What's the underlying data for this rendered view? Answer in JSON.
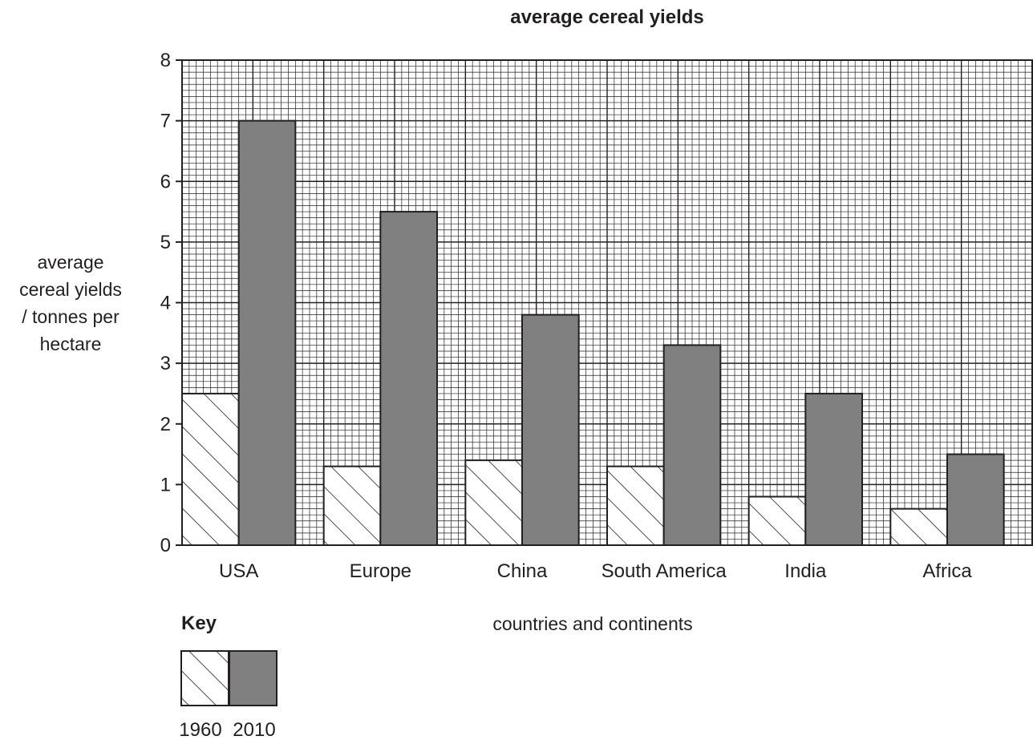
{
  "chart_data": {
    "type": "bar",
    "title": "average cereal yields",
    "xlabel": "countries and continents",
    "ylabel_lines": [
      "average",
      "cereal yields",
      "/ tonnes per",
      "hectare"
    ],
    "categories": [
      "USA",
      "Europe",
      "China",
      "South America",
      "India",
      "Africa"
    ],
    "series": [
      {
        "name": "1960",
        "values": [
          2.5,
          1.3,
          1.4,
          1.3,
          0.8,
          0.6
        ],
        "fill": "hatched"
      },
      {
        "name": "2010",
        "values": [
          7.0,
          5.5,
          3.8,
          3.3,
          2.5,
          1.5
        ],
        "fill": "#808080"
      }
    ],
    "ylim": [
      0,
      8
    ],
    "yticks": [
      "0",
      "1",
      "2",
      "3",
      "4",
      "5",
      "6",
      "7",
      "8"
    ],
    "grid": true,
    "legend": {
      "title": "Key",
      "placement": "bottom-left"
    },
    "colors": {
      "bar_2010": "#808080",
      "grid": "#231f20"
    }
  }
}
